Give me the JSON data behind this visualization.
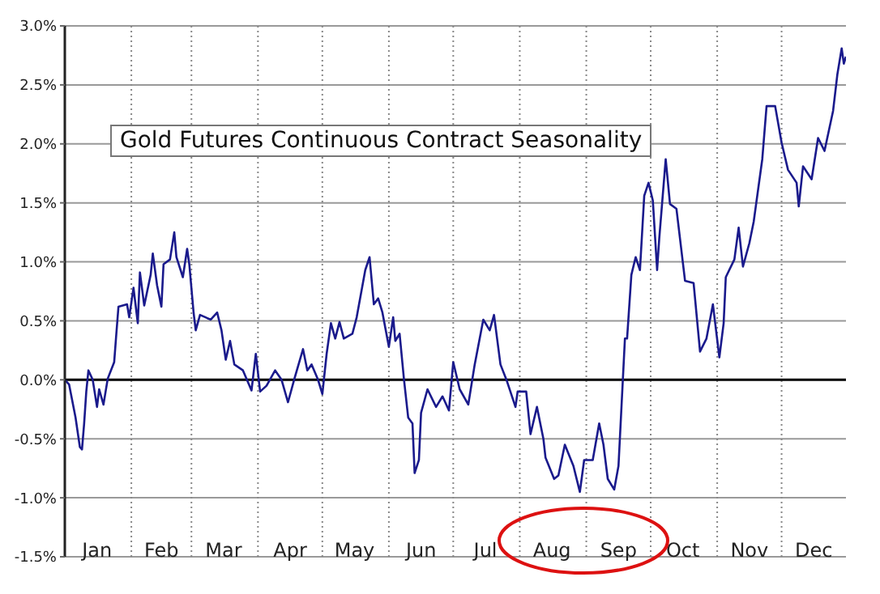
{
  "chart_data": {
    "type": "line",
    "title": "Gold Futures Continuous Contract Seasonality",
    "xlim": [
      "--01-01",
      "--12-31"
    ],
    "xticks": [
      {
        "value": "--01-16",
        "label": "Jan"
      },
      {
        "value": "--02-01",
        "label": null
      },
      {
        "value": "--02-15",
        "label": "Feb"
      },
      {
        "value": "--03-01",
        "label": null
      },
      {
        "value": "--03-16",
        "label": "Mar"
      },
      {
        "value": "--04-01",
        "label": null
      },
      {
        "value": "--04-16",
        "label": "Apr"
      },
      {
        "value": "--05-01",
        "label": null
      },
      {
        "value": "--05-16",
        "label": "May"
      },
      {
        "value": "--06-01",
        "label": null
      },
      {
        "value": "--06-16",
        "label": "Jun"
      },
      {
        "value": "--07-01",
        "label": null
      },
      {
        "value": "--07-16",
        "label": "Jul"
      },
      {
        "value": "--08-01",
        "label": null
      },
      {
        "value": "--08-16",
        "label": "Aug"
      },
      {
        "value": "--09-01",
        "label": null
      },
      {
        "value": "--09-16",
        "label": "Sep"
      },
      {
        "value": "--10-01",
        "label": null
      },
      {
        "value": "--10-16",
        "label": "Oct"
      },
      {
        "value": "--11-01",
        "label": null
      },
      {
        "value": "--11-16",
        "label": "Nov"
      },
      {
        "value": "--12-01",
        "label": null
      },
      {
        "value": "--12-16",
        "label": "Dec"
      }
    ],
    "ylim": [
      -1.5,
      3.0
    ],
    "yticks": [
      {
        "value": -1.5,
        "label": "-1.5%"
      },
      {
        "value": -1.0,
        "label": "-1.0%"
      },
      {
        "value": -0.5,
        "label": "-0.5%"
      },
      {
        "value": 0,
        "label": "0.0%"
      },
      {
        "value": 0.5,
        "label": "0.5%"
      },
      {
        "value": 1.0,
        "label": "1.0%"
      },
      {
        "value": 1.5,
        "label": "1.5%"
      },
      {
        "value": 2.0,
        "label": "2.0%"
      },
      {
        "value": 2.5,
        "label": "2.5%"
      },
      {
        "value": 3.0,
        "label": "3.0%"
      }
    ],
    "grid": true,
    "ref_lines": [
      {
        "axis": "y",
        "value": 0,
        "color": "#000000"
      }
    ],
    "x": [
      "--01-01",
      "--01-03",
      "--01-06",
      "--01-08",
      "--01-09",
      "--01-10",
      "--01-11",
      "--01-12",
      "--01-14",
      "--01-16",
      "--01-17",
      "--01-19",
      "--01-21",
      "--01-24",
      "--01-25",
      "--01-26",
      "--01-30",
      "--01-31",
      "--02-02",
      "--02-04",
      "--02-05",
      "--02-07",
      "--02-10",
      "--02-11",
      "--02-13",
      "--02-15",
      "--02-16",
      "--02-19",
      "--02-21",
      "--02-22",
      "--02-25",
      "--02-27",
      "--02-28",
      "--03-02",
      "--03-03",
      "--03-05",
      "--03-10",
      "--03-13",
      "--03-15",
      "--03-17",
      "--03-19",
      "--03-21",
      "--03-25",
      "--03-29",
      "--03-31",
      "--04-02",
      "--04-05",
      "--04-09",
      "--04-12",
      "--04-15",
      "--04-18",
      "--04-22",
      "--04-24",
      "--04-26",
      "--04-29",
      "--05-01",
      "--05-03",
      "--05-05",
      "--05-07",
      "--05-09",
      "--05-11",
      "--05-15",
      "--05-17",
      "--05-21",
      "--05-23",
      "--05-25",
      "--05-27",
      "--05-29",
      "--06-01",
      "--06-03",
      "--06-04",
      "--06-06",
      "--06-08",
      "--06-10",
      "--06-12",
      "--06-13",
      "--06-15",
      "--06-16",
      "--06-19",
      "--06-23",
      "--06-26",
      "--06-29",
      "--07-01",
      "--07-04",
      "--07-08",
      "--07-11",
      "--07-15",
      "--07-18",
      "--07-20",
      "--07-23",
      "--07-26",
      "--07-30",
      "--07-31",
      "--08-04",
      "--08-06",
      "--08-09",
      "--08-12",
      "--08-13",
      "--08-17",
      "--08-19",
      "--08-22",
      "--08-26",
      "--08-29",
      "--08-31",
      "--09-04",
      "--09-07",
      "--09-09",
      "--09-11",
      "--09-14",
      "--09-16",
      "--09-18",
      "--09-19",
      "--09-20",
      "--09-22",
      "--09-24",
      "--09-26",
      "--09-28",
      "--09-30",
      "--10-02",
      "--10-04",
      "--10-05",
      "--10-08",
      "--10-10",
      "--10-13",
      "--10-17",
      "--10-21",
      "--10-24",
      "--10-27",
      "--10-30",
      "--11-02",
      "--11-04",
      "--11-05",
      "--11-09",
      "--11-11",
      "--11-13",
      "--11-16",
      "--11-18",
      "--11-22",
      "--11-24",
      "--11-28",
      "--12-01",
      "--12-04",
      "--12-08",
      "--12-09",
      "--12-11",
      "--12-15",
      "--12-18",
      "--12-21",
      "--12-25",
      "--12-27",
      "--12-29",
      "--12-30",
      "--12-31"
    ],
    "series": [
      {
        "color": "#1a1a8c",
        "values": [
          0,
          -0.04,
          -0.32,
          -0.57,
          -0.59,
          -0.37,
          -0.1,
          0.08,
          0,
          -0.23,
          -0.08,
          -0.21,
          0.01,
          0.15,
          0.39,
          0.62,
          0.64,
          0.53,
          0.78,
          0.48,
          0.91,
          0.63,
          0.89,
          1.07,
          0.8,
          0.62,
          0.98,
          1.02,
          1.25,
          1.04,
          0.87,
          1.11,
          0.98,
          0.57,
          0.42,
          0.55,
          0.51,
          0.57,
          0.42,
          0.17,
          0.33,
          0.13,
          0.08,
          -0.09,
          0.22,
          -0.1,
          -0.05,
          0.08,
          0,
          -0.19,
          0.01,
          0.26,
          0.08,
          0.13,
          0,
          -0.12,
          0.22,
          0.48,
          0.35,
          0.49,
          0.35,
          0.39,
          0.53,
          0.93,
          1.04,
          0.64,
          0.69,
          0.57,
          0.28,
          0.53,
          0.33,
          0.39,
          0.01,
          -0.32,
          -0.37,
          -0.79,
          -0.68,
          -0.28,
          -0.08,
          -0.23,
          -0.14,
          -0.26,
          0.15,
          -0.08,
          -0.21,
          0.13,
          0.51,
          0.42,
          0.55,
          0.13,
          -0.01,
          -0.23,
          -0.1,
          -0.1,
          -0.46,
          -0.23,
          -0.5,
          -0.66,
          -0.84,
          -0.81,
          -0.55,
          -0.73,
          -0.95,
          -0.68,
          -0.68,
          -0.37,
          -0.55,
          -0.84,
          -0.93,
          -0.73,
          -0.01,
          0.35,
          0.35,
          0.89,
          1.04,
          0.93,
          1.56,
          1.67,
          1.52,
          0.93,
          1.2,
          1.87,
          1.49,
          1.45,
          0.84,
          0.82,
          0.24,
          0.35,
          0.64,
          0.19,
          0.48,
          0.87,
          1.02,
          1.29,
          0.96,
          1.16,
          1.34,
          1.87,
          2.32,
          2.32,
          2.01,
          1.78,
          1.67,
          1.47,
          1.81,
          1.7,
          2.05,
          1.94,
          2.28,
          2.59,
          2.81,
          2.68,
          2.74
        ]
      }
    ]
  }
}
